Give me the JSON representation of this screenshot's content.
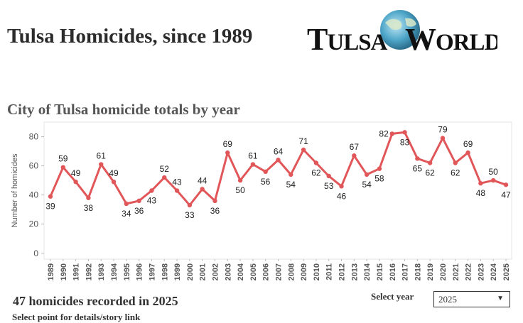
{
  "page": {
    "title": "Tulsa Homicides, since 1989",
    "logo_text": "TULSA WORLD",
    "summary": "47 homicides recorded in 2025",
    "hint": "Select point for details/story link",
    "select_label": "Select year",
    "select_value": "2025",
    "select_caret": "▼"
  },
  "colors": {
    "line": "#e15759",
    "axis_text": "#555555",
    "grid": "#e6e6e6"
  },
  "chart_data": {
    "type": "line",
    "title": "City of Tulsa homicide totals by year",
    "xlabel": "",
    "ylabel": "Number of homicides",
    "x": [
      1989,
      1990,
      1991,
      1992,
      1993,
      1994,
      1995,
      1996,
      1997,
      1998,
      1999,
      2000,
      2001,
      2002,
      2003,
      2004,
      2005,
      2006,
      2007,
      2008,
      2009,
      2010,
      2011,
      2012,
      2013,
      2014,
      2015,
      2016,
      2017,
      2018,
      2019,
      2020,
      2021,
      2022,
      2023,
      2024,
      2025
    ],
    "values": [
      39,
      59,
      49,
      38,
      61,
      49,
      34,
      36,
      43,
      52,
      43,
      33,
      44,
      36,
      69,
      50,
      61,
      56,
      64,
      54,
      71,
      62,
      53,
      46,
      67,
      54,
      58,
      82,
      83,
      65,
      62,
      79,
      62,
      69,
      48,
      50,
      47
    ],
    "label_pos": [
      "below",
      "above",
      "above",
      "below",
      "above",
      "above",
      "below",
      "below",
      "below",
      "above",
      "above",
      "below",
      "above",
      "below",
      "above",
      "below",
      "above",
      "below",
      "above",
      "below",
      "above",
      "below",
      "below",
      "below",
      "above",
      "below",
      "below",
      "right",
      "below",
      "below",
      "below",
      "above",
      "below",
      "above",
      "below",
      "above",
      "below"
    ],
    "yticks": [
      0,
      20,
      40,
      60,
      80
    ],
    "ylim": [
      -4,
      90
    ],
    "grid": false
  }
}
